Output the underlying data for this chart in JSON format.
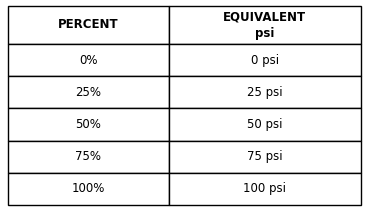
{
  "col1_header": "PERCENT",
  "col2_header_line1": "EQUIVALENT",
  "col2_header_line2": "psi",
  "rows": [
    [
      "0%",
      "0 psi"
    ],
    [
      "25%",
      "25 psi"
    ],
    [
      "50%",
      "50 psi"
    ],
    [
      "75%",
      "75 psi"
    ],
    [
      "100%",
      "100 psi"
    ]
  ],
  "background_color": "#ffffff",
  "border_color": "#000000",
  "text_color": "#000000",
  "header_fontsize": 8.5,
  "cell_fontsize": 8.5,
  "fig_width": 3.69,
  "fig_height": 2.11,
  "dpi": 100
}
